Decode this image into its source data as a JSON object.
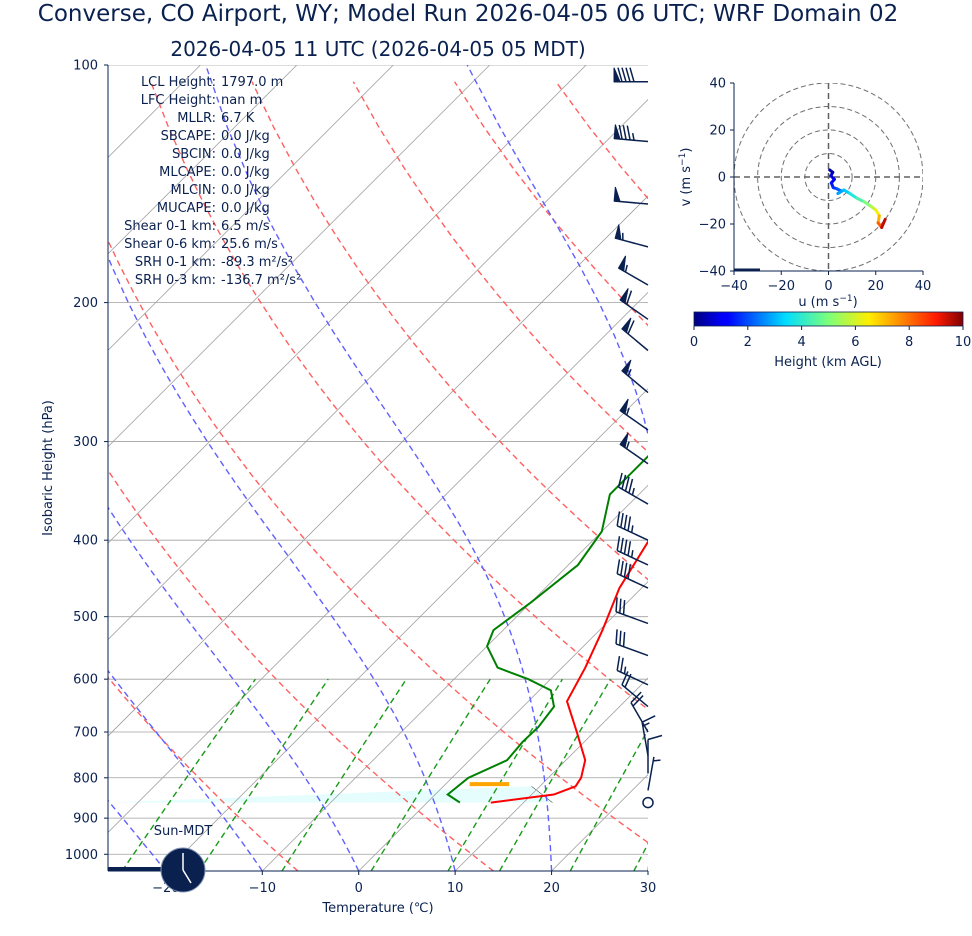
{
  "title": "Converse, CO Airport, WY; Model Run 2026-04-05 06 UTC; WRF Domain 02",
  "subtitle": "2026-04-05 11 UTC  (2026-04-05 05 MDT)",
  "indices": [
    {
      "label": "LCL Height:",
      "value": "1797.0 m"
    },
    {
      "label": "LFC Height:",
      "value": "nan m"
    },
    {
      "label": "MLLR:",
      "value": "6.7 K"
    },
    {
      "label": "SBCAPE:",
      "value": "0.0 J/kg"
    },
    {
      "label": "SBCIN:",
      "value": "0.0 J/kg"
    },
    {
      "label": "MLCAPE:",
      "value": "0.0 J/kg"
    },
    {
      "label": "MLCIN:",
      "value": "0.0 J/kg"
    },
    {
      "label": "MUCAPE:",
      "value": "0.0 J/kg"
    },
    {
      "label": "Shear 0-1 km:",
      "value": "6.5 m/s"
    },
    {
      "label": "Shear 0-6 km:",
      "value": "25.6 m/s"
    },
    {
      "label": "SRH 0-1 km:",
      "value": "-89.3 m²/s²"
    },
    {
      "label": "SRH 0-3 km:",
      "value": "-136.7 m²/s²"
    }
  ],
  "clock_label": "Sun-MDT",
  "colors": {
    "text": "#0a2150",
    "temperature": "#ff0000",
    "dewpoint": "#008000",
    "parcel_shade": "#e6fdfd",
    "dry_adiabat": "#ff6060",
    "moist_adiabat": "#6060ff",
    "mixing_ratio": "#189918",
    "isotherm": "#a0a0a0",
    "lcl_marker": "#ffa500",
    "barb": "#0a2150"
  },
  "chart_data": [
    {
      "type": "line",
      "name": "skew-t",
      "xlabel": "Temperature (℃)",
      "ylabel": "Isobaric Height (hPa)",
      "xlim": [
        -26,
        30
      ],
      "ylim": [
        1050,
        100
      ],
      "log_y": true,
      "grid": true,
      "xticks": [
        -20,
        -10,
        0,
        10,
        20,
        30
      ],
      "yticks": [
        100,
        200,
        300,
        400,
        500,
        600,
        700,
        800,
        900,
        1000
      ],
      "lcl": {
        "p": 815,
        "t_min": 2.5,
        "t_max": 6.6
      },
      "series": [
        {
          "name": "temperature",
          "p": [
            860,
            840,
            820,
            800,
            760,
            700,
            640,
            580,
            520,
            460,
            400,
            350,
            300,
            250,
            220,
            180,
            150,
            100
          ],
          "t": [
            6.6,
            12.3,
            13.7,
            13.4,
            12.0,
            8.2,
            4.0,
            2.4,
            0.3,
            -2.3,
            -4.2,
            -6.3,
            -8.4,
            -9.0,
            -8.5,
            -3.5,
            1.0,
            5.0
          ]
        },
        {
          "name": "dewpoint",
          "p": [
            860,
            840,
            800,
            760,
            720,
            690,
            650,
            620,
            600,
            580,
            545,
            520,
            480,
            430,
            390,
            350,
            320,
            280,
            250,
            220,
            200,
            190,
            180,
            170,
            160,
            150,
            140,
            120,
            100
          ],
          "t": [
            3.4,
            1.3,
            1.7,
            3.9,
            3.6,
            3.7,
            3.2,
            1.2,
            -2.3,
            -6.7,
            -10.0,
            -11.0,
            -10.0,
            -9.0,
            -10.0,
            -13.0,
            -13.0,
            -13.0,
            -14.5,
            -16.0,
            -17.3,
            -17.0,
            -17.0,
            -17.5,
            -17.8,
            -18.0,
            -18.3,
            -16.0,
            -14.5
          ]
        }
      ]
    },
    {
      "type": "line",
      "name": "hodograph",
      "xlabel": "u (m s$^{-1}$)",
      "ylabel": "v (m s$^{-1}$)",
      "xlim": [
        -40,
        40
      ],
      "ylim": [
        -40,
        40
      ],
      "xticks": [
        -40,
        -20,
        0,
        20,
        40
      ],
      "yticks": [
        -40,
        -20,
        0,
        20,
        40
      ],
      "rings": [
        10,
        20,
        30,
        40
      ],
      "u": [
        0.5,
        1.8,
        1.0,
        2.5,
        1.2,
        2.0,
        3.5,
        5.5,
        4.0,
        6.5,
        9.0,
        12.0,
        15.0,
        18.0,
        20.0,
        21.5,
        21.0,
        22.5,
        24.0
      ],
      "v": [
        3.0,
        2.0,
        0.5,
        -1.0,
        -2.5,
        -4.5,
        -5.0,
        -6.0,
        -7.0,
        -5.5,
        -7.0,
        -9.0,
        -10.5,
        -12.5,
        -14.0,
        -16.5,
        -19.5,
        -21.5,
        -18.0
      ],
      "height_km": [
        0.1,
        0.3,
        0.5,
        0.8,
        1.0,
        1.3,
        1.6,
        2.0,
        2.4,
        2.8,
        3.2,
        3.8,
        4.4,
        5.0,
        5.7,
        6.4,
        7.2,
        8.2,
        9.5
      ]
    },
    {
      "type": "heatmap",
      "name": "height-colorbar",
      "xlabel": "Height (km AGL)",
      "xlim": [
        0,
        10
      ],
      "xticks": [
        0,
        2,
        4,
        6,
        8,
        10
      ],
      "colormap": "jet"
    }
  ],
  "wind_barbs": [
    {
      "p": 105,
      "speed_kt": 90,
      "dir": 270
    },
    {
      "p": 125,
      "speed_kt": 85,
      "dir": 275
    },
    {
      "p": 150,
      "speed_kt": 50,
      "dir": 275
    },
    {
      "p": 170,
      "speed_kt": 55,
      "dir": 285
    },
    {
      "p": 190,
      "speed_kt": 55,
      "dir": 300
    },
    {
      "p": 210,
      "speed_kt": 60,
      "dir": 305
    },
    {
      "p": 230,
      "speed_kt": 60,
      "dir": 310
    },
    {
      "p": 260,
      "speed_kt": 55,
      "dir": 310
    },
    {
      "p": 290,
      "speed_kt": 55,
      "dir": 305
    },
    {
      "p": 320,
      "speed_kt": 55,
      "dir": 305
    },
    {
      "p": 360,
      "speed_kt": 45,
      "dir": 300
    },
    {
      "p": 400,
      "speed_kt": 45,
      "dir": 295
    },
    {
      "p": 430,
      "speed_kt": 45,
      "dir": 295
    },
    {
      "p": 460,
      "speed_kt": 40,
      "dir": 295
    },
    {
      "p": 510,
      "speed_kt": 30,
      "dir": 290
    },
    {
      "p": 560,
      "speed_kt": 30,
      "dir": 290
    },
    {
      "p": 610,
      "speed_kt": 25,
      "dir": 295
    },
    {
      "p": 650,
      "speed_kt": 20,
      "dir": 310
    },
    {
      "p": 700,
      "speed_kt": 20,
      "dir": 330
    },
    {
      "p": 750,
      "speed_kt": 15,
      "dir": 350
    },
    {
      "p": 790,
      "speed_kt": 10,
      "dir": 0
    },
    {
      "p": 830,
      "speed_kt": 5,
      "dir": 10
    },
    {
      "p": 860,
      "speed_kt": 0,
      "dir": 0
    }
  ]
}
